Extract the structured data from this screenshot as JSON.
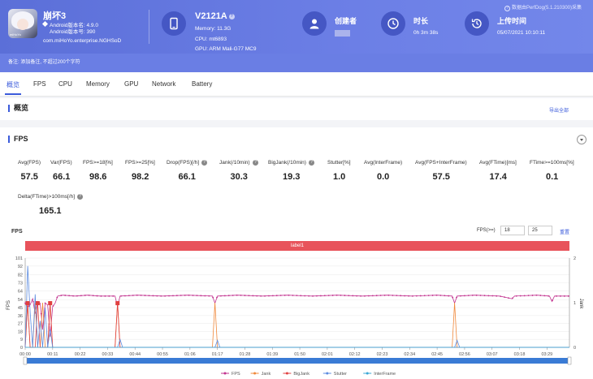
{
  "app": {
    "name": "崩坏3",
    "android_version": "Android版本名: 4.9.0",
    "android_code": "Android版本号: 390",
    "package": "com.miHoYo.enterprise.NGHSoD",
    "icon_tag": "miHoYo"
  },
  "device": {
    "name": "V2121A",
    "memory": "Memory: 11.3G",
    "cpu": "CPU: mt6893",
    "gpu": "GPU: ARM Mali-G77 MC9"
  },
  "creator": {
    "label": "创建者"
  },
  "duration": {
    "label": "时长",
    "value": "0h 3m 38s"
  },
  "upload": {
    "label": "上传时间",
    "value": "05/07/2021 10:10:11"
  },
  "data_source": "数据由PerfDog(5.1.210300)采集",
  "note": "备注: 添加备注, 不超过200个字符",
  "tabs": [
    "概览",
    "FPS",
    "CPU",
    "Memory",
    "GPU",
    "Network",
    "Battery"
  ],
  "overview": {
    "title": "概览",
    "export": "导出全部"
  },
  "fps_section": {
    "title": "FPS",
    "stats": [
      {
        "label": "Avg(FPS)",
        "value": "57.5",
        "help": false
      },
      {
        "label": "Var(FPS)",
        "value": "66.1",
        "help": false
      },
      {
        "label": "FPS>=18[%]",
        "value": "98.6",
        "help": false
      },
      {
        "label": "FPS>=25[%]",
        "value": "98.2",
        "help": false
      },
      {
        "label": "Drop(FPS)[/h]",
        "value": "66.1",
        "help": true
      },
      {
        "label": "Jank(/10min)",
        "value": "30.3",
        "help": true
      },
      {
        "label": "BigJank(/10min)",
        "value": "19.3",
        "help": true
      },
      {
        "label": "Stutter[%]",
        "value": "1.0",
        "help": false
      },
      {
        "label": "Avg(InterFrame)",
        "value": "0.0",
        "help": false
      },
      {
        "label": "Avg(FPS+InterFrame)",
        "value": "57.5",
        "help": false
      },
      {
        "label": "Avg(FTime)[ms]",
        "value": "17.4",
        "help": false
      },
      {
        "label": "FTime>=100ms[%]",
        "value": "0.1",
        "help": false
      },
      {
        "label": "Delta(FTime)>100ms[/h]",
        "value": "165.1",
        "help": true
      }
    ],
    "chart_label": "FPS",
    "threshold_label": "FPS(>=)",
    "threshold1": "18",
    "threshold2": "25",
    "reset": "重置",
    "label_bar": "label1"
  },
  "chart_data": {
    "type": "line",
    "y_left_label": "FPS",
    "y_right_label": "Jank",
    "y_left_ticks": [
      0,
      9,
      18,
      27,
      36,
      45,
      54,
      64,
      73,
      82,
      92,
      101
    ],
    "y_left_range": [
      0,
      101
    ],
    "y_right_ticks": [
      0,
      1,
      2
    ],
    "y_right_range": [
      0,
      2
    ],
    "x_ticks": [
      "00:00",
      "00:11",
      "00:22",
      "00:33",
      "00:44",
      "00:55",
      "01:06",
      "01:17",
      "01:28",
      "01:39",
      "01:50",
      "02:01",
      "02:12",
      "02:23",
      "02:34",
      "02:45",
      "02:56",
      "03:07",
      "03:18",
      "03:29"
    ],
    "x_range_seconds": [
      0,
      218
    ],
    "series": [
      {
        "name": "FPS",
        "color": "#c2338f",
        "points": [
          [
            0,
            50
          ],
          [
            1,
            45
          ],
          [
            2,
            48
          ],
          [
            3,
            55
          ],
          [
            4,
            38
          ],
          [
            5,
            52
          ],
          [
            6,
            50
          ],
          [
            7,
            20
          ],
          [
            8,
            50
          ],
          [
            9,
            48
          ],
          [
            10,
            12
          ],
          [
            11,
            46
          ],
          [
            12,
            50
          ],
          [
            13,
            58
          ],
          [
            15,
            59
          ],
          [
            20,
            58
          ],
          [
            25,
            59
          ],
          [
            30,
            58
          ],
          [
            36,
            58
          ],
          [
            37,
            46
          ],
          [
            38,
            58
          ],
          [
            45,
            59
          ],
          [
            55,
            58
          ],
          [
            65,
            59
          ],
          [
            75,
            58
          ],
          [
            76,
            50
          ],
          [
            77,
            58
          ],
          [
            85,
            59
          ],
          [
            95,
            58
          ],
          [
            105,
            59
          ],
          [
            115,
            58
          ],
          [
            125,
            59
          ],
          [
            135,
            58
          ],
          [
            145,
            59
          ],
          [
            155,
            58
          ],
          [
            165,
            59
          ],
          [
            171,
            58
          ],
          [
            172,
            50
          ],
          [
            173,
            58
          ],
          [
            180,
            59
          ],
          [
            190,
            58
          ],
          [
            195,
            55
          ],
          [
            196,
            58
          ],
          [
            205,
            59
          ],
          [
            210,
            58
          ],
          [
            211,
            52
          ],
          [
            212,
            58
          ],
          [
            218,
            58
          ]
        ]
      },
      {
        "name": "Jank",
        "color": "#f0883a",
        "points": [
          [
            0,
            0
          ],
          [
            1,
            1
          ],
          [
            2,
            0
          ],
          [
            3,
            0
          ],
          [
            4,
            1
          ],
          [
            5,
            0
          ],
          [
            6,
            0
          ],
          [
            7,
            1
          ],
          [
            8,
            0
          ],
          [
            9,
            0
          ],
          [
            10,
            1
          ],
          [
            11,
            0
          ],
          [
            36,
            0
          ],
          [
            37,
            1
          ],
          [
            38,
            0
          ],
          [
            75,
            0
          ],
          [
            76,
            1
          ],
          [
            77,
            0
          ],
          [
            171,
            0
          ],
          [
            172,
            1
          ],
          [
            173,
            0
          ],
          [
            218,
            0
          ]
        ]
      },
      {
        "name": "BigJank",
        "color": "#e04040",
        "points": [
          [
            0,
            0
          ],
          [
            1,
            1
          ],
          [
            2,
            0
          ],
          [
            4,
            0
          ],
          [
            5,
            1
          ],
          [
            6,
            0
          ],
          [
            9,
            0
          ],
          [
            10,
            1
          ],
          [
            11,
            0
          ],
          [
            36,
            0
          ],
          [
            37,
            1
          ],
          [
            38,
            0
          ],
          [
            218,
            0
          ]
        ]
      },
      {
        "name": "Stutter",
        "color": "#5b8be0",
        "points": [
          [
            0,
            0
          ],
          [
            1,
            92
          ],
          [
            2,
            40
          ],
          [
            3,
            0
          ],
          [
            4,
            60
          ],
          [
            5,
            0
          ],
          [
            6,
            30
          ],
          [
            7,
            0
          ],
          [
            8,
            45
          ],
          [
            9,
            0
          ],
          [
            10,
            20
          ],
          [
            11,
            0
          ],
          [
            37,
            0
          ],
          [
            38,
            9
          ],
          [
            39,
            0
          ],
          [
            76,
            0
          ],
          [
            77,
            8
          ],
          [
            78,
            0
          ],
          [
            172,
            0
          ],
          [
            173,
            8
          ],
          [
            174,
            0
          ],
          [
            218,
            0
          ]
        ]
      },
      {
        "name": "InterFrame",
        "color": "#3aa7d6",
        "points": [
          [
            0,
            0
          ],
          [
            218,
            0
          ]
        ]
      }
    ]
  }
}
